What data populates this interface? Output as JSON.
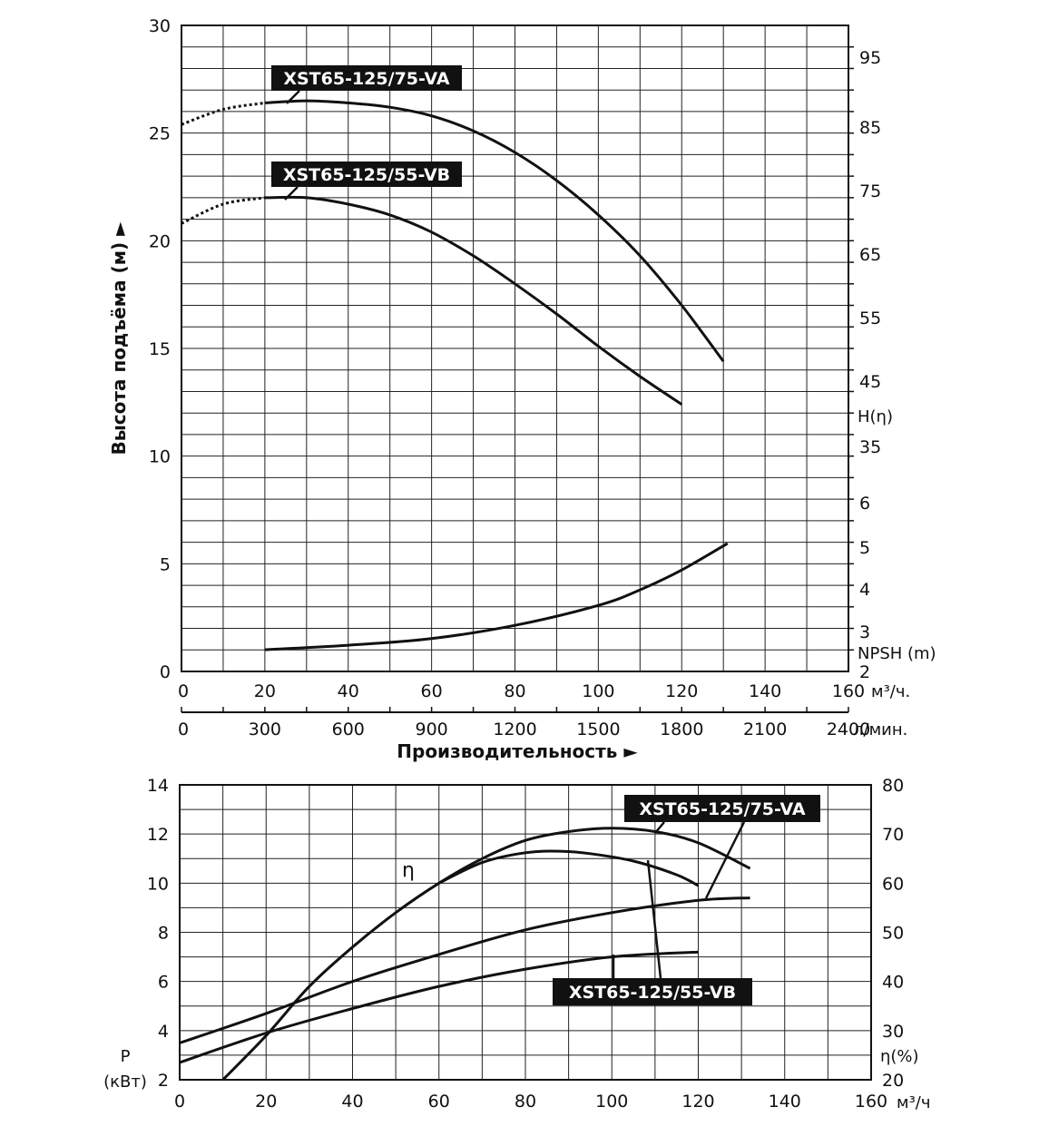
{
  "chart_data": [
    {
      "type": "line",
      "ylabel": "Высота подъёма (м) ►",
      "xlabel": "Производительность ►",
      "x_unit_primary": "м³/ч.",
      "x_unit_secondary": "л/мин.",
      "xlim": [
        0,
        160
      ],
      "ylim": [
        0,
        30
      ],
      "x_ticks": [
        "0",
        "20",
        "40",
        "60",
        "80",
        "100",
        "120",
        "140",
        "160"
      ],
      "x_ticks_secondary": [
        "0",
        "300",
        "600",
        "900",
        "1200",
        "1500",
        "1800",
        "2100",
        "2400"
      ],
      "y_ticks": [
        "0",
        "5",
        "10",
        "15",
        "20",
        "25",
        "30"
      ],
      "right_ticks_h": [
        "95",
        "85",
        "75",
        "65",
        "55",
        "45",
        "35"
      ],
      "right_label_h": "H(η)",
      "right_ticks_npsh": [
        "6",
        "5",
        "4",
        "3",
        "2"
      ],
      "right_label_npsh": "NPSH (m)",
      "grid": true,
      "series": [
        {
          "name": "XST65-125/75-VA",
          "x": [
            0,
            10,
            20,
            30,
            40,
            50,
            60,
            70,
            80,
            90,
            100,
            110,
            120,
            130
          ],
          "values": [
            25.4,
            26.1,
            26.4,
            26.5,
            26.4,
            26.2,
            25.8,
            25.1,
            24.1,
            22.8,
            21.2,
            19.3,
            17.0,
            14.4
          ],
          "dotted_until_x": 20
        },
        {
          "name": "XST65-125/55-VB",
          "x": [
            0,
            10,
            20,
            30,
            40,
            50,
            60,
            70,
            80,
            90,
            100,
            110,
            120
          ],
          "values": [
            20.8,
            21.7,
            22.0,
            22.0,
            21.7,
            21.2,
            20.4,
            19.3,
            18.0,
            16.6,
            15.1,
            13.7,
            12.4
          ],
          "dotted_until_x": 20
        },
        {
          "name": "NPSH",
          "x": [
            20,
            40,
            60,
            80,
            100,
            110,
            120,
            131
          ],
          "values": [
            1.0,
            1.2,
            1.5,
            2.1,
            3.0,
            3.7,
            4.6,
            5.8
          ]
        }
      ]
    },
    {
      "type": "line",
      "ylabel_left": "P",
      "ylabel_left_unit": "(кВт)",
      "ylabel_right": "η(%)",
      "x_unit": "м³/ч",
      "xlim": [
        0,
        160
      ],
      "ylim_left": [
        2,
        14
      ],
      "ylim_right": [
        20,
        80
      ],
      "x_ticks": [
        "0",
        "20",
        "40",
        "60",
        "80",
        "100",
        "120",
        "140",
        "160"
      ],
      "y_ticks_left": [
        "2",
        "4",
        "6",
        "8",
        "10",
        "12",
        "14"
      ],
      "y_ticks_right": [
        "20",
        "30",
        "40",
        "50",
        "60",
        "70",
        "80"
      ],
      "grid": true,
      "annotation": "η",
      "series": [
        {
          "name": "XST65-125/75-VA",
          "metric": "P",
          "x": [
            0,
            20,
            40,
            60,
            80,
            100,
            120,
            132
          ],
          "values": [
            3.5,
            4.7,
            6.0,
            7.1,
            8.1,
            8.8,
            9.3,
            9.4
          ]
        },
        {
          "name": "XST65-125/55-VB",
          "metric": "P",
          "x": [
            0,
            20,
            40,
            60,
            80,
            100,
            120
          ],
          "values": [
            2.7,
            3.9,
            4.9,
            5.8,
            6.5,
            7.0,
            7.2
          ]
        },
        {
          "name": "XST65-125/75-VA",
          "metric": "η",
          "x": [
            10,
            20,
            30,
            40,
            50,
            60,
            70,
            80,
            90,
            100,
            110,
            120,
            132
          ],
          "values": [
            20,
            29,
            39,
            47,
            54,
            60,
            65,
            68.7,
            70.5,
            71.2,
            70.5,
            68.2,
            63
          ]
        },
        {
          "name": "XST65-125/55-VB",
          "metric": "η",
          "x": [
            60,
            70,
            80,
            88,
            95,
            105,
            115,
            120
          ],
          "values": [
            60,
            64.2,
            66.2,
            66.5,
            66.0,
            64.5,
            61.7,
            59.5
          ]
        }
      ]
    }
  ]
}
